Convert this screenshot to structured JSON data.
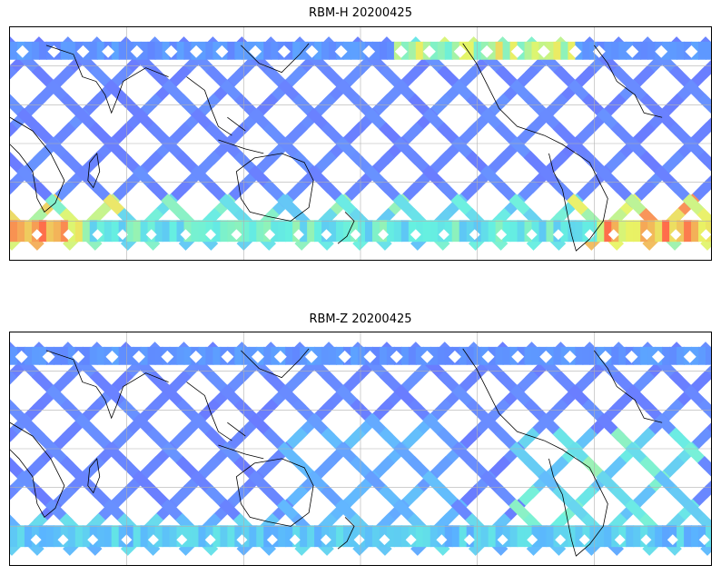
{
  "panels": [
    {
      "title": "RBM-H 20200425",
      "id": "rbm-h"
    },
    {
      "title": "RBM-Z 20200425",
      "id": "rbm-z"
    }
  ],
  "colors": {
    "low": "#6666ff",
    "mid_low": "#5ab4ff",
    "mid": "#66f0e0",
    "mid_high": "#e8f566",
    "high": "#ff6a4a",
    "grid": "#b0b0b0",
    "coast": "#000000"
  }
}
